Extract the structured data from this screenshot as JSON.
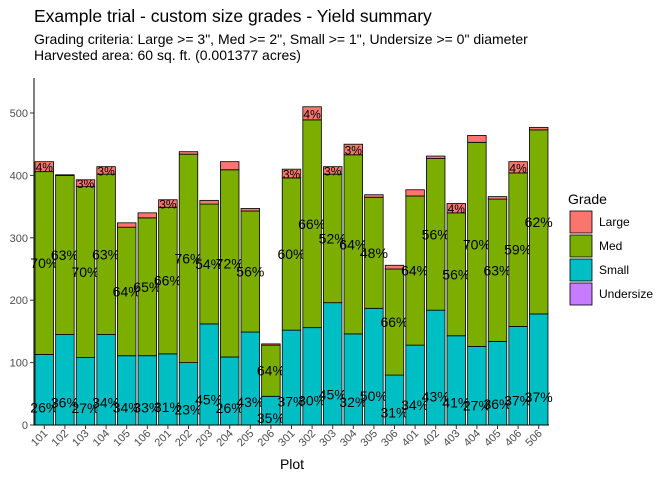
{
  "chart_data": {
    "type": "bar",
    "stacked": true,
    "title": "Example trial - custom size grades - Yield summary",
    "subtitle_lines": [
      "Grading criteria: Large >= 3\", Med >= 2\", Small >= 1\", Undersize >= 0\" diameter",
      "Harvested area: 60 sq. ft. (0.001377 acres)"
    ],
    "xlabel": "Plot",
    "ylabel": "",
    "ylim": [
      0,
      565
    ],
    "yticks": [
      0,
      100,
      200,
      300,
      400,
      500
    ],
    "grid": false,
    "legend": {
      "title": "Grade",
      "position": "right",
      "entries": [
        {
          "name": "Large",
          "color": "#F8766D"
        },
        {
          "name": "Med",
          "color": "#7CAE00"
        },
        {
          "name": "Small",
          "color": "#00BFC4"
        },
        {
          "name": "Undersize",
          "color": "#C77CFF"
        }
      ]
    },
    "categories": [
      "101",
      "102",
      "103",
      "104",
      "105",
      "106",
      "201",
      "202",
      "203",
      "204",
      "205",
      "206",
      "301",
      "302",
      "303",
      "304",
      "305",
      "306",
      "401",
      "402",
      "403",
      "404",
      "405",
      "406",
      "506"
    ],
    "series": [
      {
        "name": "Undersize",
        "color": "#C77CFF",
        "values": [
          0,
          0,
          0,
          0,
          0,
          0,
          0,
          0,
          0,
          0,
          0,
          0,
          0,
          0,
          0,
          0,
          0,
          0,
          0,
          0,
          0,
          0,
          0,
          0,
          0
        ]
      },
      {
        "name": "Small",
        "color": "#00BFC4",
        "values": [
          113,
          145,
          108,
          145,
          111,
          111,
          114,
          100,
          162,
          109,
          149,
          46,
          152,
          156,
          196,
          146,
          187,
          80,
          128,
          184,
          143,
          126,
          134,
          158,
          178
        ]
      },
      {
        "name": "Med",
        "color": "#7CAE00",
        "values": [
          293,
          255,
          274,
          257,
          206,
          221,
          235,
          334,
          192,
          300,
          194,
          82,
          244,
          333,
          206,
          287,
          178,
          170,
          239,
          243,
          197,
          327,
          228,
          246,
          295
        ]
      },
      {
        "name": "Large",
        "color": "#F8766D",
        "values": [
          16,
          1,
          11,
          12,
          7,
          8,
          12,
          4,
          6,
          13,
          4,
          2,
          14,
          21,
          12,
          17,
          4,
          6,
          10,
          4,
          15,
          11,
          4,
          18,
          4
        ]
      }
    ],
    "bar_labels": {
      "Small": [
        "26%",
        "36%",
        "27%",
        "34%",
        "34%",
        "33%",
        "31%",
        "23%",
        "45%",
        "26%",
        "43%",
        "35%",
        "37%",
        "30%",
        "45%",
        "32%",
        "50%",
        "31%",
        "34%",
        "43%",
        "41%",
        "27%",
        "36%",
        "37%",
        "37%"
      ],
      "Med": [
        "70%",
        "63%",
        "70%",
        "63%",
        "64%",
        "65%",
        "66%",
        "76%",
        "54%",
        "72%",
        "56%",
        "64%",
        "60%",
        "66%",
        "52%",
        "64%",
        "48%",
        "66%",
        "64%",
        "56%",
        "56%",
        "70%",
        "63%",
        "59%",
        "62%"
      ],
      "Large": [
        "4%",
        "",
        "3%",
        "3%",
        "",
        "",
        "3%",
        "",
        "",
        "",
        "",
        "",
        "3%",
        "4%",
        "3%",
        "3%",
        "",
        "",
        "",
        "",
        "4%",
        "",
        "",
        "4%",
        ""
      ]
    }
  }
}
